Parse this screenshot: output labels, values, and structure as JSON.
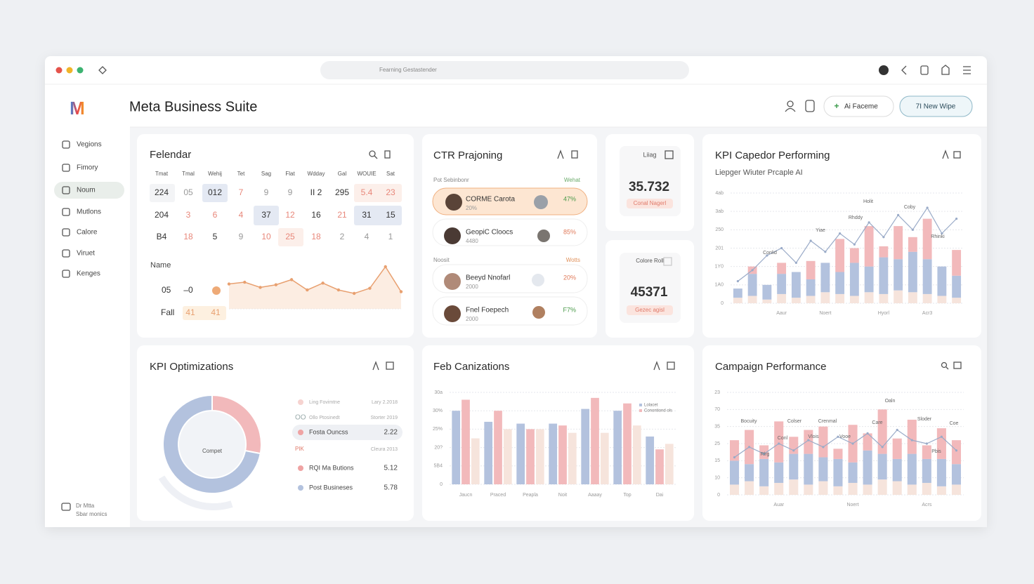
{
  "window": {
    "address": "Fearning Gestastender"
  },
  "header": {
    "logo": "M",
    "title": "Meta Business Suite",
    "buttons": [
      "Ai Faceme",
      "7I New Wipe"
    ]
  },
  "sidebar": {
    "items": [
      "Vegions",
      "Fimory",
      "Noum",
      "Mutlons",
      "Calore",
      "Viruet",
      "Kenges"
    ],
    "footer": [
      "Dr Mtta",
      "Sbar monics"
    ]
  },
  "calendar": {
    "title": "Felendar",
    "days": [
      "Tmat",
      "Tmal",
      "Wehij",
      "Tet",
      "Sag",
      "Flat",
      "Wdday",
      "Gal",
      "WOUIE",
      "Sat"
    ],
    "rows": [
      [
        "224",
        "05",
        "012",
        "7",
        "9",
        "9",
        "II 2",
        "295",
        "5.4",
        "23"
      ],
      [
        "204",
        "3",
        "6",
        "4",
        "37",
        "12",
        "16",
        "21",
        "31",
        "15"
      ],
      [
        "B4",
        "18",
        "5",
        "9",
        "10",
        "25",
        "18",
        "2",
        "4",
        "1"
      ]
    ],
    "name_label": "Name",
    "extra_rows": [
      [
        "05",
        "–0"
      ],
      [
        "Fall",
        "41",
        "41"
      ]
    ]
  },
  "ctr": {
    "title": "CTR Prajoning",
    "groups": [
      {
        "label": "Pot Sebinbonr",
        "metric": "Wehat",
        "items": [
          {
            "name": "CORME Carota",
            "sub": "20%",
            "value": "47%"
          },
          {
            "name": "GeopiC Cloocs",
            "sub": "4480",
            "value": "85%"
          }
        ]
      },
      {
        "label": "Noosit",
        "metric": "Wotts",
        "items": [
          {
            "name": "Beeyd Nnofarl",
            "sub": "2000",
            "value": "20%"
          },
          {
            "name": "Fnel Foepech",
            "sub": "2000",
            "value": "F7%"
          }
        ]
      }
    ]
  },
  "stats": [
    {
      "label": "Liiag",
      "value": "35.732",
      "badge": "Conal Nagerl"
    },
    {
      "label": "Colore Roll",
      "value": "45371",
      "badge": "Gezec agisl"
    }
  ],
  "chart_data": [
    {
      "type": "line",
      "color": "#e8a070",
      "values": [
        17,
        19,
        13,
        16,
        22,
        10,
        18,
        10,
        6,
        12,
        37,
        8
      ]
    },
    {
      "type": "bar",
      "stacked": true,
      "title": "KPI Capedor Performing",
      "subtitle": "Liepger Wiuter Prcaple AI",
      "categories": [
        null,
        null,
        null,
        "Aaur",
        null,
        null,
        "Noert",
        null,
        null,
        null,
        "Hyorl",
        null,
        null,
        "Acr3",
        null,
        null
      ],
      "series": [
        {
          "color": "#f6e4dc",
          "values": [
            15,
            20,
            10,
            25,
            15,
            20,
            30,
            25,
            20,
            30,
            25,
            35,
            30,
            25,
            20,
            15
          ]
        },
        {
          "color": "#b3c2de",
          "values": [
            25,
            60,
            40,
            55,
            70,
            45,
            80,
            60,
            90,
            70,
            100,
            85,
            110,
            95,
            80,
            60
          ]
        },
        {
          "color": "#f2b9bb",
          "values": [
            0,
            20,
            0,
            30,
            0,
            50,
            0,
            90,
            40,
            110,
            30,
            90,
            40,
            110,
            0,
            70
          ]
        },
        {
          "type": "line",
          "color": "#9aabc8",
          "values": [
            60,
            90,
            130,
            150,
            110,
            170,
            140,
            190,
            160,
            220,
            180,
            240,
            200,
            260,
            190,
            230
          ]
        }
      ],
      "ylim": [
        0,
        300
      ],
      "yticks": [
        0,
        {
          "value": 50,
          "label": "1A0"
        },
        {
          "value": 100,
          "label": "1Y0"
        },
        {
          "value": 150,
          "label": "201"
        },
        {
          "value": 200,
          "label": "250"
        },
        {
          "value": 250,
          "label": "3ab"
        },
        {
          "value": 300,
          "label": "4ab"
        }
      ],
      "grid": true,
      "annotations": [
        "Holit",
        "Coby",
        "Rhddy",
        "Yiae",
        "Conlid",
        "Rhinki"
      ]
    },
    {
      "type": "pie",
      "title": "KPI Optimizations",
      "center_label": "Compet",
      "values": [
        28,
        72
      ],
      "colors": [
        "#f2b9bb",
        "#b3c2de"
      ],
      "legend_items": [
        {
          "label": "Ling Fovimtne",
          "value": "Lary 2.2018",
          "color": "#f6d3d0"
        },
        {
          "prefix": "OO",
          "label": "Ollo Ptosinedt",
          "value": "Storter 2019"
        },
        {
          "label": "Fosta Ouncss",
          "value": "2.22",
          "color": "#efa3a3"
        },
        {
          "prefix": "PIK",
          "value": "Cleura 2013"
        },
        {
          "label": "RQI Ma Butions",
          "value": "5.12",
          "color": "#efa3a3"
        },
        {
          "label": "Post Busineses",
          "value": "5.78",
          "color": "#b3c2de"
        }
      ]
    },
    {
      "type": "bar",
      "stacked": false,
      "title": "Feb Canizations",
      "categories": [
        "Jaucn",
        "Praced",
        "Peapla",
        "Noit",
        "Aaaay",
        "Top",
        "Dai"
      ],
      "series": [
        {
          "name": "Lolacet",
          "color": "#b3c2de",
          "values": [
            200,
            170,
            165,
            165,
            205,
            200,
            130
          ]
        },
        {
          "name": "Conontiond ols",
          "color": "#f2b9bb",
          "values": [
            230,
            200,
            150,
            160,
            235,
            220,
            95
          ]
        },
        {
          "color": "#f6e4dc",
          "values": [
            125,
            150,
            150,
            140,
            140,
            160,
            110
          ]
        }
      ],
      "ylim": [
        0,
        250
      ],
      "yticks": [
        0,
        {
          "value": 50,
          "label": "5B4"
        },
        {
          "value": 100,
          "label": "20?"
        },
        {
          "value": 150,
          "label": "25%"
        },
        {
          "value": 200,
          "label": "30%"
        },
        {
          "value": 250,
          "label": "30a"
        }
      ],
      "grid": true
    },
    {
      "type": "bar",
      "stacked": true,
      "title": "Campaign Performance",
      "categories": [
        null,
        null,
        null,
        "Auar",
        null,
        null,
        null,
        null,
        "Noert",
        null,
        null,
        null,
        null,
        "Acrs",
        null,
        null
      ],
      "series": [
        {
          "color": "#f6e4dc",
          "values": [
            6,
            8,
            5,
            7,
            9,
            6,
            8,
            5,
            7,
            6,
            9,
            8,
            6,
            7,
            5,
            6
          ]
        },
        {
          "color": "#b3c2de",
          "values": [
            14,
            10,
            16,
            12,
            15,
            18,
            14,
            16,
            12,
            20,
            15,
            13,
            18,
            14,
            16,
            12
          ]
        },
        {
          "color": "#f2b9bb",
          "values": [
            12,
            20,
            8,
            24,
            10,
            14,
            18,
            6,
            22,
            10,
            26,
            12,
            20,
            8,
            18,
            14
          ]
        },
        {
          "type": "line",
          "color": "#9aabc8",
          "values": [
            22,
            28,
            24,
            30,
            26,
            32,
            28,
            34,
            30,
            36,
            28,
            38,
            32,
            30,
            34,
            26
          ]
        }
      ],
      "ylim": [
        0,
        60
      ],
      "yticks": [
        0,
        10,
        {
          "value": 20,
          "label": "15"
        },
        {
          "value": 30,
          "label": "25"
        },
        {
          "value": 40,
          "label": "35"
        },
        {
          "value": 50,
          "label": "70"
        },
        {
          "value": 60,
          "label": "23"
        }
      ],
      "grid": true,
      "annotations": [
        "Bocuity",
        "Colser",
        "Crenmal",
        "Care",
        "Oaln",
        "Sloder",
        "Coe",
        "Conl",
        "Vlois",
        "Vooe",
        "Rlrg",
        "Pbis"
      ]
    }
  ]
}
